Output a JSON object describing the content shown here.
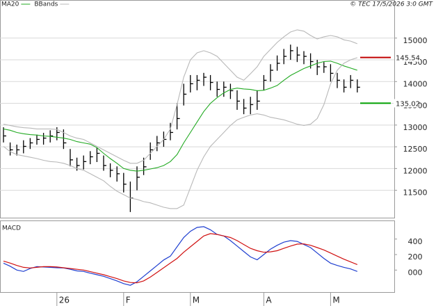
{
  "chart_data": [
    {
      "type": "ohlc",
      "source": "© TEC 17/5/2026 3:0 GMT",
      "categories": [
        null,
        null,
        null,
        null,
        null,
        null,
        null,
        null,
        "26",
        null,
        null,
        null,
        null,
        null,
        null,
        null,
        null,
        null,
        "F",
        null,
        null,
        null,
        null,
        null,
        null,
        null,
        null,
        null,
        "M",
        null,
        null,
        null,
        null,
        null,
        null,
        null,
        null,
        null,
        null,
        "A",
        null,
        null,
        null,
        null,
        null,
        null,
        null,
        null,
        null,
        "M",
        null,
        null,
        null,
        null
      ],
      "high": [
        12950,
        12600,
        12550,
        12650,
        12700,
        12780,
        12820,
        12880,
        12950,
        12900,
        12450,
        12250,
        12300,
        12400,
        12480,
        12300,
        12120,
        12050,
        11900,
        11700,
        12050,
        12250,
        12600,
        12750,
        12850,
        13050,
        13500,
        13950,
        14150,
        14150,
        14200,
        14150,
        14000,
        14000,
        13950,
        13800,
        13600,
        13650,
        13800,
        14150,
        14400,
        14600,
        14750,
        14850,
        14800,
        14700,
        14650,
        14500,
        14450,
        14400,
        14200,
        14050,
        14150,
        14050
      ],
      "low": [
        12600,
        12300,
        12300,
        12350,
        12450,
        12550,
        12550,
        12600,
        12650,
        12450,
        12050,
        11950,
        11980,
        12100,
        12150,
        11950,
        11800,
        11700,
        11450,
        11000,
        11500,
        11850,
        12200,
        12400,
        12500,
        12650,
        12900,
        13450,
        13750,
        13800,
        13900,
        13800,
        13650,
        13650,
        13600,
        13350,
        13250,
        13250,
        13350,
        13800,
        14000,
        14250,
        14400,
        14500,
        14450,
        14400,
        14300,
        14150,
        14200,
        14000,
        13850,
        13750,
        13850,
        13750
      ],
      "close": [
        12750,
        12430,
        12430,
        12510,
        12590,
        12670,
        12700,
        12750,
        12830,
        12590,
        12200,
        12070,
        12160,
        12270,
        12350,
        12070,
        11960,
        11880,
        11640,
        11320,
        11800,
        12040,
        12430,
        12590,
        12670,
        12830,
        13150,
        13710,
        13950,
        14030,
        14100,
        13980,
        13820,
        13870,
        13790,
        13550,
        13390,
        13470,
        13550,
        14030,
        14260,
        14420,
        14580,
        14710,
        14610,
        14580,
        14460,
        14340,
        14340,
        14190,
        14030,
        13870,
        14030,
        13870
      ],
      "color": "#000000",
      "series": [
        {
          "name": "MA20",
          "color": "#22aa22",
          "values": [
            12910,
            12880,
            12830,
            12800,
            12780,
            12770,
            12750,
            12740,
            12720,
            12700,
            12670,
            12620,
            12590,
            12560,
            12480,
            12350,
            12230,
            12120,
            12000,
            11960,
            11940,
            11960,
            11990,
            12020,
            12070,
            12160,
            12320,
            12590,
            12830,
            13070,
            13310,
            13500,
            13630,
            13740,
            13820,
            13850,
            13830,
            13820,
            13790,
            13800,
            13850,
            13910,
            14030,
            14140,
            14220,
            14300,
            14360,
            14420,
            14460,
            14470,
            14420,
            14360,
            14310,
            14260
          ]
        },
        {
          "name": "BBands",
          "color": "#b8b8b8",
          "upper": [
            13020,
            12990,
            12960,
            12940,
            12930,
            12910,
            12910,
            12910,
            12900,
            12830,
            12750,
            12700,
            12670,
            12590,
            12510,
            12430,
            12350,
            12270,
            12190,
            12120,
            12120,
            12190,
            12350,
            12510,
            12670,
            12910,
            13470,
            14100,
            14500,
            14660,
            14710,
            14660,
            14580,
            14420,
            14260,
            14100,
            14030,
            14180,
            14340,
            14580,
            14740,
            14900,
            15030,
            15140,
            15190,
            15160,
            15060,
            14980,
            15030,
            15060,
            15030,
            14960,
            14930,
            14870
          ],
          "lower": [
            12510,
            12390,
            12320,
            12290,
            12260,
            12230,
            12190,
            12160,
            12150,
            12120,
            12070,
            12000,
            11960,
            11880,
            11800,
            11720,
            11590,
            11480,
            11400,
            11320,
            11290,
            11240,
            11210,
            11160,
            11110,
            11080,
            11080,
            11160,
            11560,
            11960,
            12270,
            12510,
            12670,
            12830,
            12990,
            13120,
            13180,
            13230,
            13260,
            13230,
            13180,
            13150,
            13120,
            13070,
            13020,
            12990,
            13020,
            13150,
            13470,
            13950,
            14260,
            14420,
            14500,
            14550
          ]
        }
      ],
      "annotations": [
        {
          "value": 14554,
          "label": "145.54",
          "color": "#c00000"
        },
        {
          "value": 13502,
          "label": "135.02",
          "color": "#00a000"
        }
      ],
      "ylim": [
        10870,
        15860
      ],
      "yticks": [
        11500,
        12000,
        12500,
        13000,
        13500,
        14000,
        14500,
        15000
      ],
      "grid": true
    },
    {
      "type": "line",
      "title": "MACD",
      "series": [
        {
          "color": "#1f3fd0",
          "values": [
            89,
            50,
            0,
            -18,
            20,
            44,
            40,
            35,
            30,
            27,
            10,
            -10,
            -18,
            -40,
            -60,
            -80,
            -110,
            -140,
            -175,
            -196,
            -150,
            -80,
            -10,
            60,
            130,
            180,
            300,
            420,
            500,
            550,
            560,
            520,
            460,
            440,
            380,
            310,
            240,
            170,
            133,
            200,
            270,
            320,
            360,
            380,
            370,
            330,
            290,
            220,
            150,
            89,
            60,
            35,
            15,
            -18
          ]
        },
        {
          "color": "#d01010",
          "values": [
            116,
            90,
            60,
            35,
            27,
            35,
            44,
            44,
            40,
            30,
            20,
            10,
            0,
            -20,
            -40,
            -60,
            -85,
            -110,
            -140,
            -160,
            -165,
            -140,
            -90,
            -30,
            30,
            90,
            150,
            230,
            300,
            370,
            440,
            470,
            460,
            440,
            420,
            380,
            330,
            280,
            250,
            230,
            235,
            250,
            280,
            310,
            335,
            338,
            320,
            290,
            260,
            220,
            180,
            140,
            105,
            71
          ]
        }
      ],
      "ylim": [
        -284,
        631
      ],
      "yticks": [
        400,
        200,
        {
          "value": 0,
          "label": "000"
        }
      ],
      "grid": false
    }
  ]
}
